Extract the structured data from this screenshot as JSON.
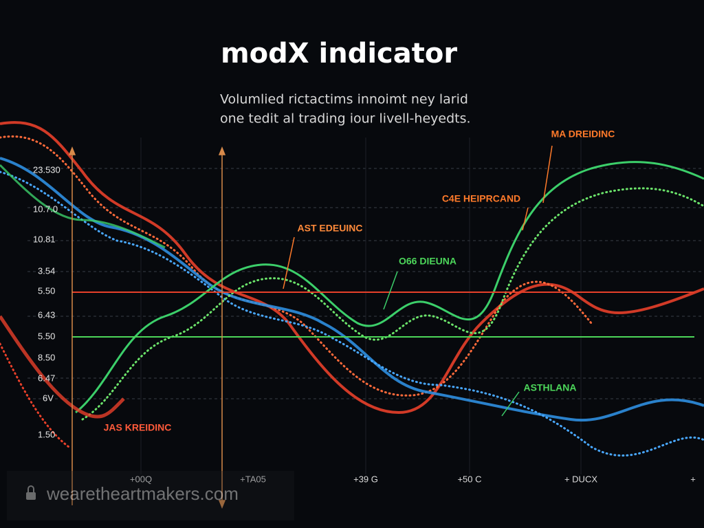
{
  "title": "modX indicator",
  "subtitle": [
    "Volumlied rictactims innoimt ney larid",
    "one tedit al trading iour livell-heyedts."
  ],
  "y_labels": [
    "23.530",
    "10.7.0",
    "10.81",
    "3.54",
    "5.50",
    "6.43",
    "5.50",
    "8.50",
    "6.47",
    "6V",
    "1.50"
  ],
  "x_labels": [
    "+00Q",
    "+TA05",
    "+39 G",
    "+50 C",
    "+ DUCX",
    "+"
  ],
  "annotations": [
    "MA DREIDINC",
    "C4E HEIPRCAND",
    "AST EDEUINC",
    "O66 DIEUNA",
    "ASTHLANA",
    "JAS KREIDINC"
  ],
  "watermark": "wearetheartmakers.com"
}
